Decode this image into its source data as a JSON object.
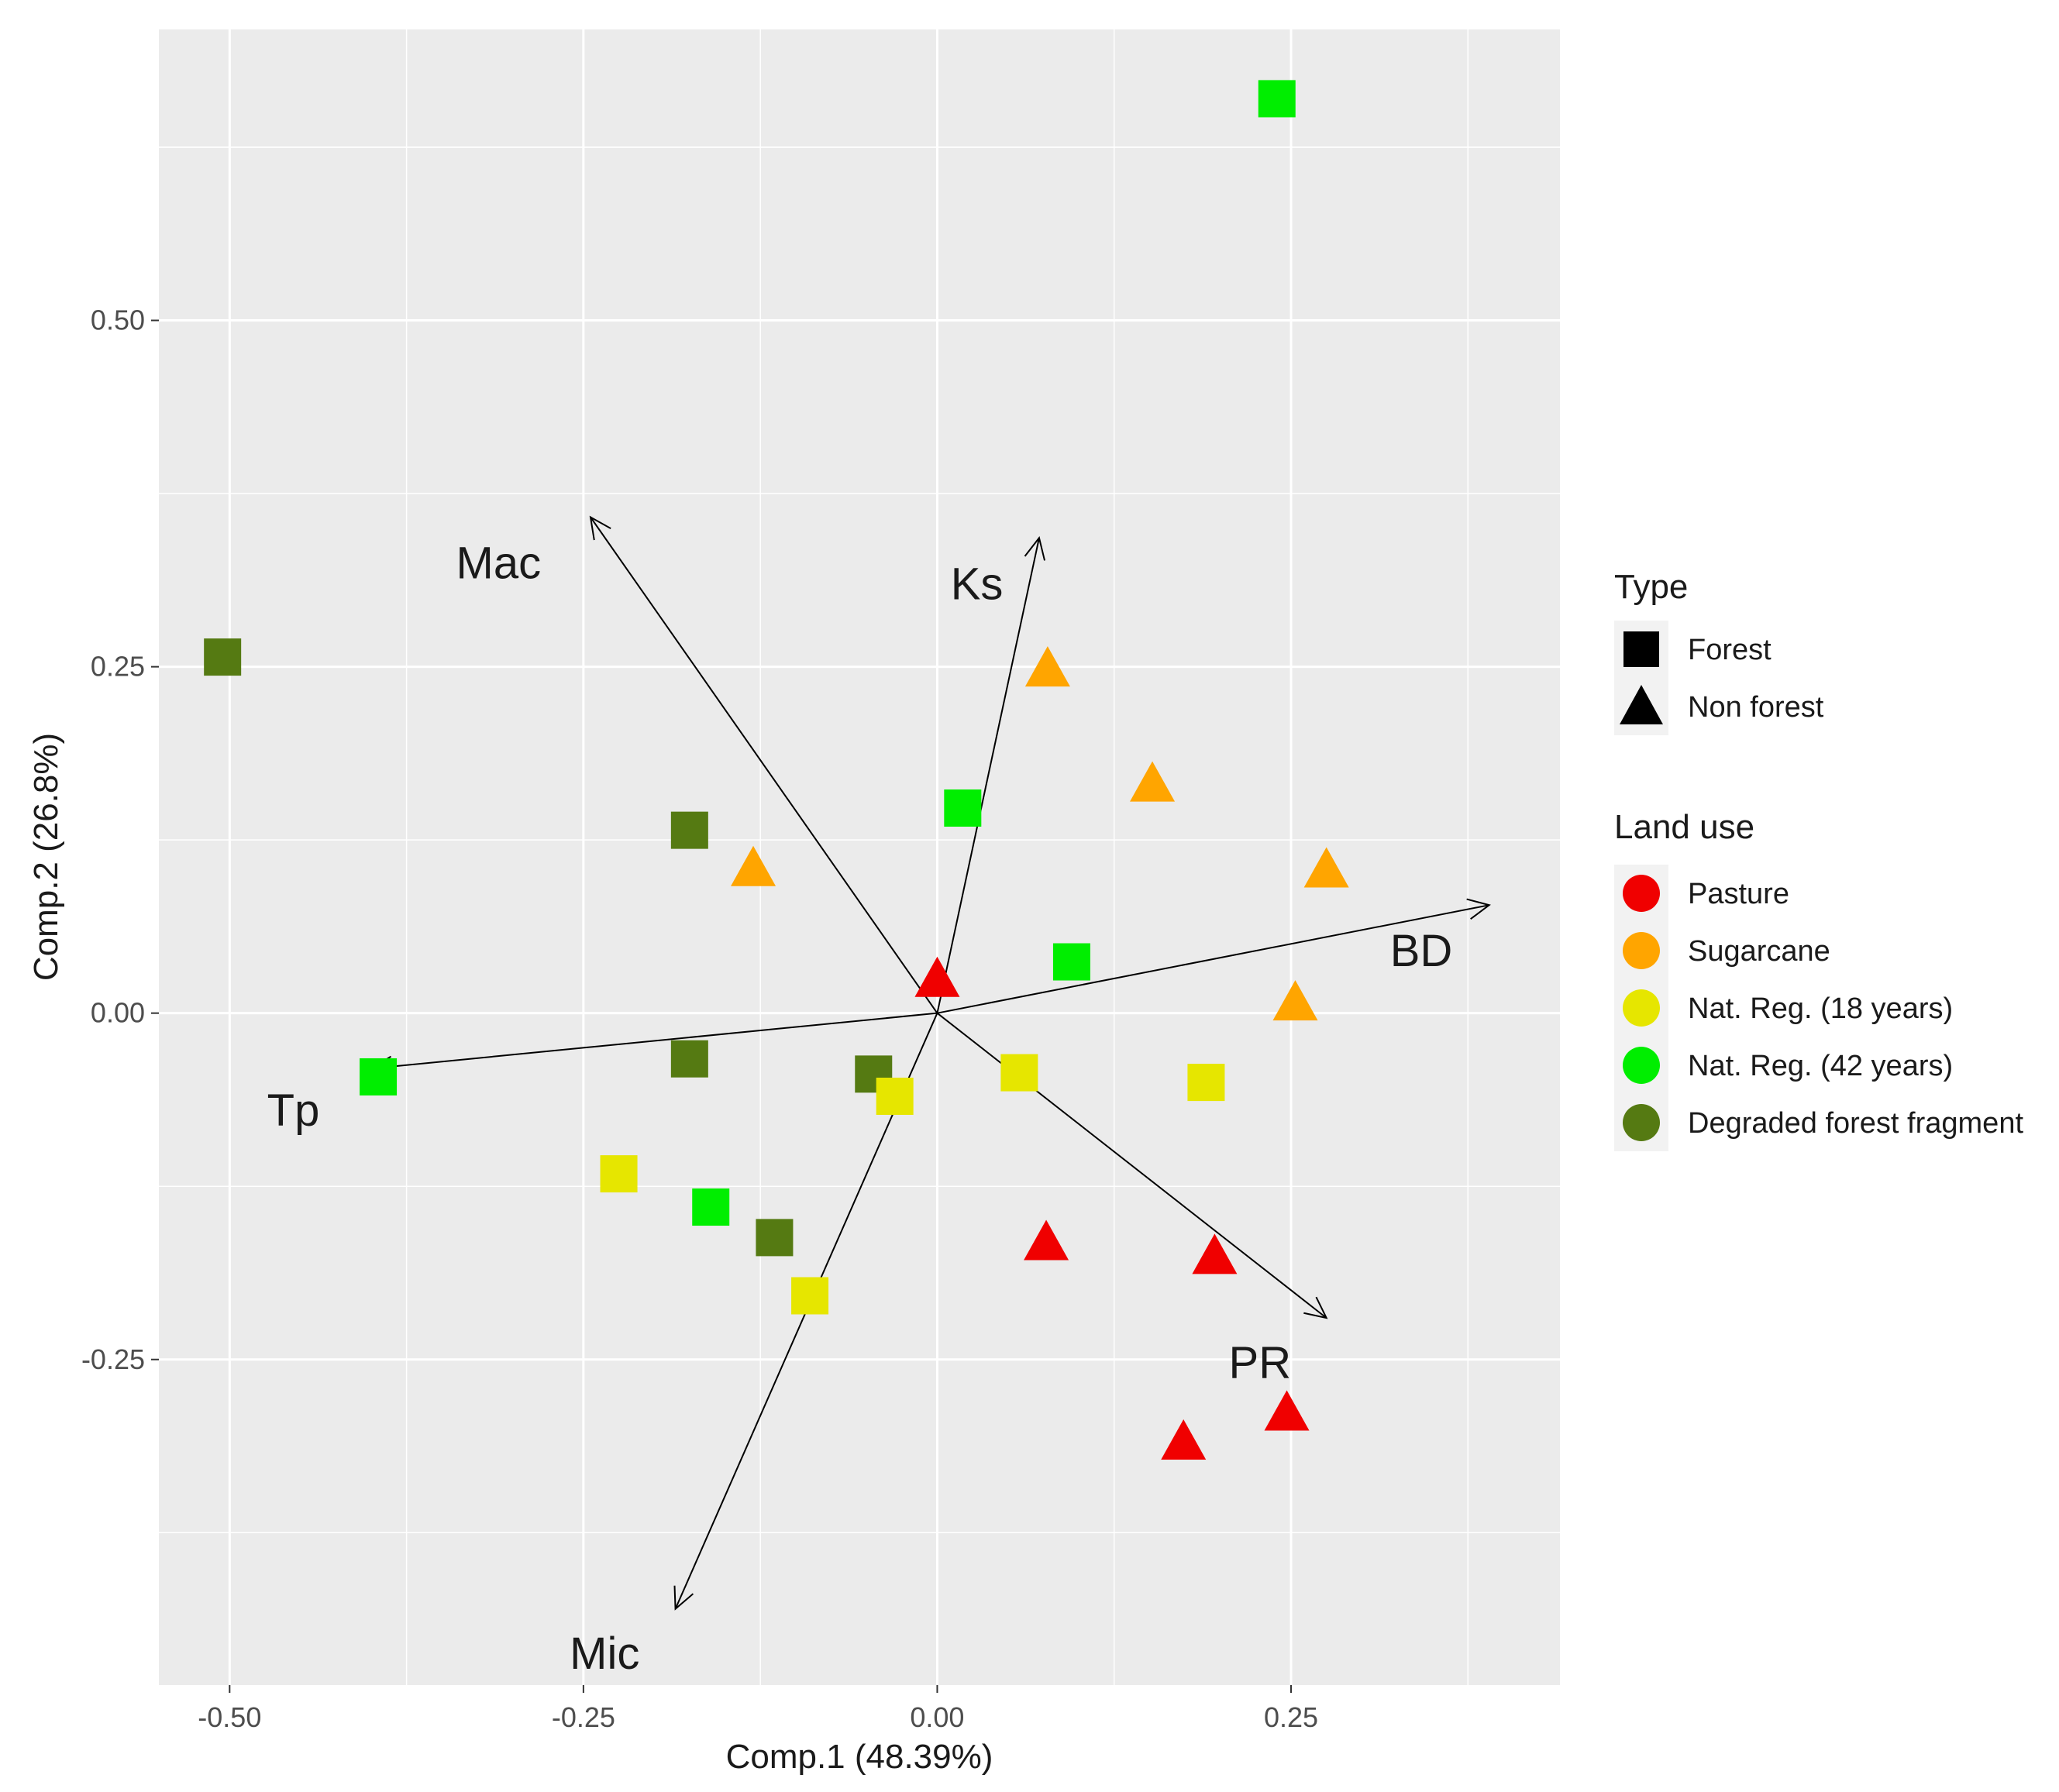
{
  "chart_data": {
    "type": "scatter",
    "xlabel": "Comp.1 (48.39%)",
    "ylabel": "Comp.2 (26.8%)",
    "xlim": [
      -0.55,
      0.44
    ],
    "ylim": [
      -0.485,
      0.71
    ],
    "x_ticks": [
      -0.5,
      -0.25,
      0.0,
      0.25
    ],
    "x_tick_labels": [
      "-0.50",
      "-0.25",
      "0.00",
      "0.25"
    ],
    "y_ticks": [
      -0.25,
      0.0,
      0.25,
      0.5
    ],
    "y_tick_labels": [
      "-0.25",
      "0.00",
      "0.25",
      "0.50"
    ],
    "grid": true,
    "legend_position": "right",
    "legends": {
      "type": {
        "title": "Type",
        "entries": [
          {
            "shape": "square",
            "label": "Forest"
          },
          {
            "shape": "triangle",
            "label": "Non forest"
          }
        ]
      },
      "land_use": {
        "title": "Land use",
        "entries": [
          {
            "key": "pasture",
            "label": "Pasture",
            "color": "#f00000"
          },
          {
            "key": "sugarcane",
            "label": "Sugarcane",
            "color": "#ffa500"
          },
          {
            "key": "natreg18",
            "label": "Nat. Reg. (18 years)",
            "color": "#e6e600"
          },
          {
            "key": "natreg42",
            "label": "Nat. Reg. (42 years)",
            "color": "#00ee00"
          },
          {
            "key": "degraded",
            "label": "Degraded forest fragment",
            "color": "#557a12"
          }
        ]
      }
    },
    "points": [
      {
        "x": 0.24,
        "y": 0.66,
        "shape": "square",
        "group": "natreg42"
      },
      {
        "x": -0.505,
        "y": 0.257,
        "shape": "square",
        "group": "degraded"
      },
      {
        "x": -0.175,
        "y": 0.132,
        "shape": "square",
        "group": "degraded"
      },
      {
        "x": 0.018,
        "y": 0.148,
        "shape": "square",
        "group": "natreg42"
      },
      {
        "x": 0.095,
        "y": 0.037,
        "shape": "square",
        "group": "natreg42"
      },
      {
        "x": -0.395,
        "y": -0.046,
        "shape": "square",
        "group": "natreg42"
      },
      {
        "x": -0.175,
        "y": -0.033,
        "shape": "square",
        "group": "degraded"
      },
      {
        "x": -0.045,
        "y": -0.044,
        "shape": "square",
        "group": "degraded"
      },
      {
        "x": -0.03,
        "y": -0.06,
        "shape": "square",
        "group": "natreg18"
      },
      {
        "x": 0.058,
        "y": -0.043,
        "shape": "square",
        "group": "natreg18"
      },
      {
        "x": 0.19,
        "y": -0.05,
        "shape": "square",
        "group": "natreg18"
      },
      {
        "x": -0.225,
        "y": -0.116,
        "shape": "square",
        "group": "natreg18"
      },
      {
        "x": -0.16,
        "y": -0.14,
        "shape": "square",
        "group": "natreg42"
      },
      {
        "x": -0.115,
        "y": -0.162,
        "shape": "square",
        "group": "degraded"
      },
      {
        "x": -0.09,
        "y": -0.204,
        "shape": "square",
        "group": "natreg18"
      },
      {
        "x": 0.078,
        "y": 0.248,
        "shape": "triangle",
        "group": "sugarcane"
      },
      {
        "x": 0.152,
        "y": 0.165,
        "shape": "triangle",
        "group": "sugarcane"
      },
      {
        "x": -0.13,
        "y": 0.104,
        "shape": "triangle",
        "group": "sugarcane"
      },
      {
        "x": 0.275,
        "y": 0.103,
        "shape": "triangle",
        "group": "sugarcane"
      },
      {
        "x": 0.253,
        "y": 0.007,
        "shape": "triangle",
        "group": "sugarcane"
      },
      {
        "x": 0.0,
        "y": 0.024,
        "shape": "triangle",
        "group": "pasture"
      },
      {
        "x": 0.077,
        "y": -0.166,
        "shape": "triangle",
        "group": "pasture"
      },
      {
        "x": 0.196,
        "y": -0.176,
        "shape": "triangle",
        "group": "pasture"
      },
      {
        "x": 0.247,
        "y": -0.289,
        "shape": "triangle",
        "group": "pasture"
      },
      {
        "x": 0.174,
        "y": -0.31,
        "shape": "triangle",
        "group": "pasture"
      }
    ],
    "arrows": [
      {
        "label": "Mac",
        "x": -0.245,
        "y": 0.358,
        "label_x": -0.31,
        "label_y": 0.325
      },
      {
        "label": "Ks",
        "x": 0.072,
        "y": 0.343,
        "label_x": 0.028,
        "label_y": 0.31
      },
      {
        "label": "BD",
        "x": 0.39,
        "y": 0.078,
        "label_x": 0.342,
        "label_y": 0.045
      },
      {
        "label": "Tp",
        "x": -0.4,
        "y": -0.04,
        "label_x": -0.455,
        "label_y": -0.07
      },
      {
        "label": "PR",
        "x": 0.275,
        "y": -0.22,
        "label_x": 0.228,
        "label_y": -0.252
      },
      {
        "label": "Mic",
        "x": -0.185,
        "y": -0.43,
        "label_x": -0.235,
        "label_y": -0.462
      }
    ]
  }
}
